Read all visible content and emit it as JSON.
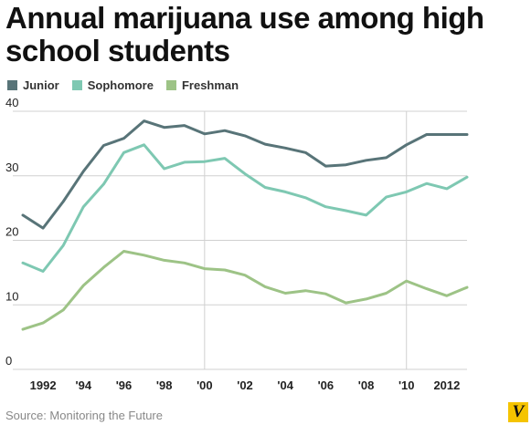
{
  "chart_data": {
    "type": "line",
    "title": "Annual marijuana use among high school students",
    "xlabel": "",
    "ylabel": "",
    "x": [
      1991,
      1992,
      1993,
      1994,
      1995,
      1996,
      1997,
      1998,
      1999,
      2000,
      2001,
      2002,
      2003,
      2004,
      2005,
      2006,
      2007,
      2008,
      2009,
      2010,
      2011,
      2012,
      2013
    ],
    "x_tick_values": [
      1992,
      1994,
      1996,
      1998,
      2000,
      2002,
      2004,
      2006,
      2008,
      2010,
      2012
    ],
    "x_tick_labels": [
      "1992",
      "'94",
      "'96",
      "'98",
      "'00",
      "'02",
      "'04",
      "'06",
      "'08",
      "'10",
      "2012"
    ],
    "xlim": [
      1990.5,
      2013
    ],
    "ylim": [
      0,
      40
    ],
    "y_ticks": [
      0,
      10,
      20,
      30,
      40
    ],
    "grid": true,
    "legend_position": "top-left",
    "series": [
      {
        "name": "Junior",
        "color": "#587478",
        "values": [
          23.9,
          21.9,
          26.0,
          30.7,
          34.7,
          35.8,
          38.5,
          37.5,
          37.8,
          36.5,
          37.0,
          36.2,
          34.9,
          34.3,
          33.6,
          31.5,
          31.7,
          32.4,
          32.8,
          34.8,
          36.4,
          36.4,
          36.4
        ]
      },
      {
        "name": "Sophomore",
        "color": "#7ec8b2",
        "values": [
          16.5,
          15.2,
          19.2,
          25.2,
          28.7,
          33.6,
          34.8,
          31.1,
          32.1,
          32.2,
          32.7,
          30.3,
          28.2,
          27.5,
          26.6,
          25.2,
          24.6,
          23.9,
          26.7,
          27.5,
          28.8,
          28.0,
          29.8
        ]
      },
      {
        "name": "Freshman",
        "color": "#9dc386",
        "values": [
          6.2,
          7.2,
          9.2,
          13.0,
          15.8,
          18.3,
          17.7,
          16.9,
          16.5,
          15.6,
          15.4,
          14.6,
          12.8,
          11.8,
          12.2,
          11.7,
          10.3,
          10.9,
          11.8,
          13.7,
          12.5,
          11.4,
          12.7
        ]
      }
    ]
  },
  "source": "Source: Monitoring the Future",
  "logo_letter": "V",
  "colors": {
    "grid": "#d0d0d0",
    "tick_text": "#222222",
    "logo_bg": "#f5c400"
  }
}
